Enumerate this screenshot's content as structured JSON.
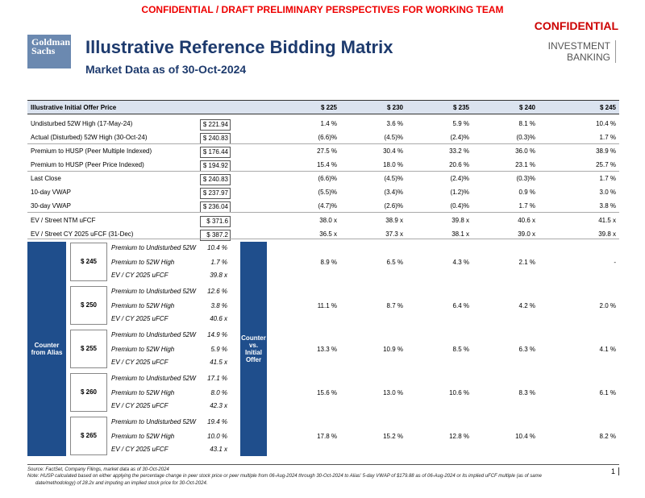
{
  "banner": "CONFIDENTIAL / DRAFT PRELIMINARY PERSPECTIVES FOR WORKING TEAM",
  "confidential": "CONFIDENTIAL",
  "logo": {
    "line1": "Goldman",
    "line2": "Sachs"
  },
  "ib": {
    "line1": "INVESTMENT",
    "line2": "BANKING"
  },
  "title": "Illustrative Reference Bidding Matrix",
  "subtitle": "Market Data as of 30-Oct-2024",
  "header": {
    "label": "Illustrative Initial Offer Price",
    "cols": [
      "$ 225",
      "$ 230",
      "$ 235",
      "$ 240",
      "$ 245"
    ]
  },
  "rows": [
    {
      "label": "Undisturbed 52W High (17-May-24)",
      "price": "$ 221.94",
      "vals": [
        "1.4 %",
        "3.6 %",
        "5.9 %",
        "8.1 %",
        "10.4 %"
      ]
    },
    {
      "label": "Actual (Disturbed) 52W High (30-Oct-24)",
      "price": "$ 240.83",
      "vals": [
        "(6.6)%",
        "(4.5)%",
        "(2.4)%",
        "(0.3)%",
        "1.7 %"
      ]
    },
    {
      "label": "Premium to HUSP (Peer Multiple Indexed)",
      "price": "$ 176.44",
      "vals": [
        "27.5 %",
        "30.4 %",
        "33.2 %",
        "36.0 %",
        "38.9 %"
      ]
    },
    {
      "label": "Premium to HUSP (Peer Price Indexed)",
      "price": "$ 194.92",
      "vals": [
        "15.4 %",
        "18.0 %",
        "20.6 %",
        "23.1 %",
        "25.7 %"
      ]
    },
    {
      "label": "Last Close",
      "price": "$ 240.83",
      "vals": [
        "(6.6)%",
        "(4.5)%",
        "(2.4)%",
        "(0.3)%",
        "1.7 %"
      ]
    },
    {
      "label": "10-day VWAP",
      "price": "$ 237.97",
      "vals": [
        "(5.5)%",
        "(3.4)%",
        "(1.2)%",
        "0.9 %",
        "3.0 %"
      ]
    },
    {
      "label": "30-day VWAP",
      "price": "$ 236.04",
      "vals": [
        "(4.7)%",
        "(2.6)%",
        "(0.4)%",
        "1.7 %",
        "3.8 %"
      ]
    },
    {
      "label": "EV / Street NTM uFCF",
      "price": "$ 371.6",
      "vals": [
        "38.0 x",
        "38.9 x",
        "39.8 x",
        "40.6 x",
        "41.5 x"
      ]
    },
    {
      "label": "EV / Street CY 2025 uFCF (31-Dec)",
      "price": "$ 387.2",
      "vals": [
        "36.5 x",
        "37.3 x",
        "38.1 x",
        "39.0 x",
        "39.8 x"
      ]
    }
  ],
  "counter_alias": "Counter from Alias",
  "counter_offer": "Counter vs. Initial Offer",
  "counters": [
    {
      "price": "$ 245",
      "m1": "Premium to Undisturbed 52W",
      "v1": "10.4 %",
      "m2": "Premium to 52W High",
      "v2": "1.7 %",
      "m3": "EV / CY 2025 uFCF",
      "v3": "39.8 x",
      "vals": [
        "8.9 %",
        "6.5 %",
        "4.3 %",
        "2.1 %",
        "-"
      ]
    },
    {
      "price": "$ 250",
      "m1": "Premium to Undisturbed 52W",
      "v1": "12.6 %",
      "m2": "Premium to 52W High",
      "v2": "3.8 %",
      "m3": "EV / CY 2025 uFCF",
      "v3": "40.6 x",
      "vals": [
        "11.1 %",
        "8.7 %",
        "6.4 %",
        "4.2 %",
        "2.0 %"
      ]
    },
    {
      "price": "$ 255",
      "m1": "Premium to Undisturbed 52W",
      "v1": "14.9 %",
      "m2": "Premium to 52W High",
      "v2": "5.9 %",
      "m3": "EV / CY 2025 uFCF",
      "v3": "41.5 x",
      "vals": [
        "13.3 %",
        "10.9 %",
        "8.5 %",
        "6.3 %",
        "4.1 %"
      ]
    },
    {
      "price": "$ 260",
      "m1": "Premium to Undisturbed 52W",
      "v1": "17.1 %",
      "m2": "Premium to 52W High",
      "v2": "8.0 %",
      "m3": "EV / CY 2025 uFCF",
      "v3": "42.3 x",
      "vals": [
        "15.6 %",
        "13.0 %",
        "10.6 %",
        "8.3 %",
        "6.1 %"
      ]
    },
    {
      "price": "$ 265",
      "m1": "Premium to Undisturbed 52W",
      "v1": "19.4 %",
      "m2": "Premium to 52W High",
      "v2": "10.0 %",
      "m3": "EV / CY 2025 uFCF",
      "v3": "43.1 x",
      "vals": [
        "17.8 %",
        "15.2 %",
        "12.8 %",
        "10.4 %",
        "8.2 %"
      ]
    }
  ],
  "footer": {
    "source": "Source: FactSet, Company Filings, market data as of 30-Oct-2024",
    "note1": "Note: HUSP calculated based on either applying the percentage change in peer stock price or peer multiple from 06-Aug-2024 through 30-Oct-2024 to Alias' 5-day VWAP of $179.88 as of 06-Aug-2024 or its implied uFCF multiple (as of same",
    "note2": "date/methodology) of 28.2x and imputing an implied stock price for 30-Oct-2024.",
    "page": "1"
  }
}
